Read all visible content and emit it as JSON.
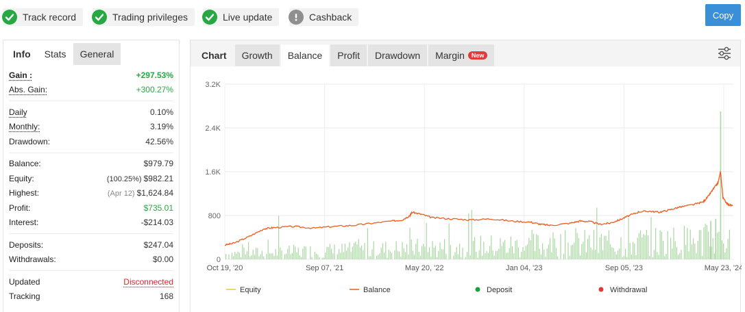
{
  "badges": [
    {
      "label": "Track record",
      "status": "ok",
      "icon": "check-icon"
    },
    {
      "label": "Trading privileges",
      "status": "ok",
      "icon": "check-icon"
    },
    {
      "label": "Live update",
      "status": "ok",
      "icon": "check-icon"
    },
    {
      "label": "Cashback",
      "status": "warn",
      "icon": "exclamation-icon"
    }
  ],
  "copy_button": "Copy",
  "left_tabs": {
    "info": "Info",
    "stats": "Stats",
    "general": "General"
  },
  "stats": {
    "gain_label": "Gain :",
    "gain_value": "+297.53%",
    "abs_gain_label": "Abs. Gain:",
    "abs_gain_value": "+300.27%",
    "daily_label": "Daily",
    "daily_value": "0.10%",
    "monthly_label": "Monthly:",
    "monthly_value": "3.19%",
    "drawdown_label": "Drawdown:",
    "drawdown_value": "42.56%",
    "balance_label": "Balance:",
    "balance_value": "$979.79",
    "equity_label": "Equity:",
    "equity_pct": "(100.25%)",
    "equity_value": "$982.21",
    "highest_label": "Highest:",
    "highest_date": "(Apr 12)",
    "highest_value": "$1,624.84",
    "profit_label": "Profit:",
    "profit_value": "$735.01",
    "interest_label": "Interest:",
    "interest_value": "-$214.03",
    "deposits_label": "Deposits:",
    "deposits_value": "$247.04",
    "withdrawals_label": "Withdrawals:",
    "withdrawals_value": "$0.00",
    "updated_label": "Updated",
    "updated_value": "Disconnected",
    "tracking_label": "Tracking",
    "tracking_value": "168"
  },
  "right_tabs": {
    "chart": "Chart",
    "growth": "Growth",
    "balance": "Balance",
    "profit": "Profit",
    "drawdown": "Drawdown",
    "margin": "Margin",
    "new_badge": "New"
  },
  "colors": {
    "accent": "#3a8fd9",
    "green": "#27a844",
    "red": "#d9262b",
    "balance_line": "#f05a1a",
    "volume_bars": "#a8d8a0",
    "equity": "#f5c242"
  },
  "chart_data": {
    "type": "line",
    "yticks": [
      "3.2K",
      "2.4K",
      "1.6K",
      "800",
      "0"
    ],
    "ylim": [
      0,
      3200
    ],
    "xticks": [
      "Oct 19, '20",
      "Sep 07, '21",
      "May 20, '22",
      "Jan 04, '23",
      "Sep 05, '23",
      "May 23, '24"
    ],
    "legend": [
      "Equity",
      "Balance",
      "Deposit",
      "Withdrawal"
    ],
    "legend_colors": [
      "#f5c242",
      "#f05a1a",
      "#1aa03a",
      "#e23a3a"
    ],
    "series": [
      {
        "name": "Balance",
        "points": [
          [
            0,
            260
          ],
          [
            0.02,
            300
          ],
          [
            0.05,
            420
          ],
          [
            0.08,
            560
          ],
          [
            0.1,
            580
          ],
          [
            0.14,
            600
          ],
          [
            0.18,
            570
          ],
          [
            0.22,
            600
          ],
          [
            0.26,
            620
          ],
          [
            0.3,
            660
          ],
          [
            0.34,
            700
          ],
          [
            0.36,
            720
          ],
          [
            0.375,
            800
          ],
          [
            0.38,
            860
          ],
          [
            0.4,
            820
          ],
          [
            0.42,
            760
          ],
          [
            0.46,
            740
          ],
          [
            0.5,
            720
          ],
          [
            0.54,
            740
          ],
          [
            0.58,
            700
          ],
          [
            0.62,
            680
          ],
          [
            0.64,
            640
          ],
          [
            0.66,
            620
          ],
          [
            0.7,
            660
          ],
          [
            0.72,
            700
          ],
          [
            0.74,
            690
          ],
          [
            0.76,
            640
          ],
          [
            0.78,
            660
          ],
          [
            0.8,
            720
          ],
          [
            0.82,
            800
          ],
          [
            0.84,
            870
          ],
          [
            0.86,
            880
          ],
          [
            0.88,
            860
          ],
          [
            0.9,
            900
          ],
          [
            0.92,
            950
          ],
          [
            0.95,
            1000
          ],
          [
            0.97,
            1050
          ],
          [
            0.98,
            1150
          ],
          [
            0.99,
            1280
          ],
          [
            1.0,
            1400
          ],
          [
            1.005,
            1600
          ],
          [
            1.01,
            1120
          ],
          [
            1.02,
            1000
          ],
          [
            1.03,
            980
          ]
        ]
      },
      {
        "name": "Deposit",
        "spikes": [
          [
            1.005,
            2700
          ],
          [
            0.985,
            700
          ],
          [
            0.995,
            740
          ]
        ]
      }
    ]
  }
}
